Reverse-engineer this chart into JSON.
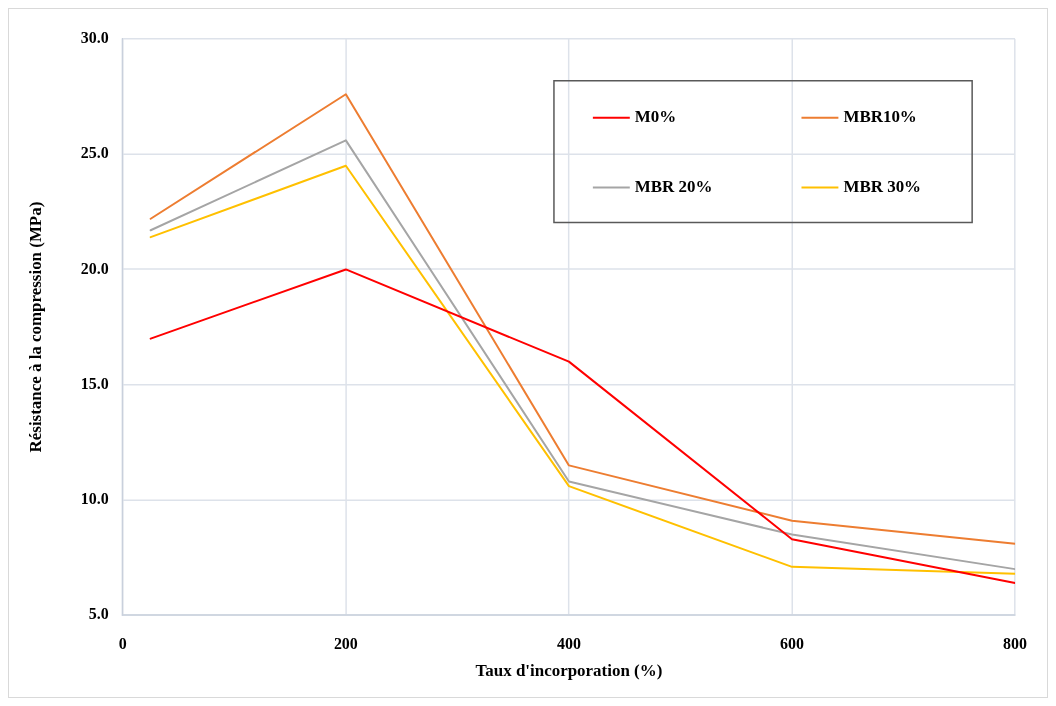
{
  "chart_data": {
    "type": "line",
    "xlabel": "Taux d'incorporation (%)",
    "ylabel": "Résistance à la compression (MPa)",
    "x": [
      25,
      200,
      400,
      600,
      800
    ],
    "series": [
      {
        "name": "M0%",
        "color": "#ff0000",
        "values": [
          17.0,
          20.0,
          16.0,
          8.3,
          6.4
        ]
      },
      {
        "name": "MBR10%",
        "color": "#ed7d31",
        "values": [
          22.2,
          27.6,
          11.5,
          9.1,
          8.1
        ]
      },
      {
        "name": "MBR 20%",
        "color": "#a5a5a5",
        "values": [
          21.7,
          25.6,
          10.8,
          8.5,
          7.0
        ]
      },
      {
        "name": "MBR 30%",
        "color": "#ffc000",
        "values": [
          21.4,
          24.5,
          10.6,
          7.1,
          6.8
        ]
      }
    ],
    "xlim": [
      0,
      800
    ],
    "xticks": [
      0,
      200,
      400,
      600,
      800
    ],
    "ylim": [
      5,
      30
    ],
    "yticks": [
      {
        "value": 5,
        "label": "5.0"
      },
      {
        "value": 10,
        "label": "10.0"
      },
      {
        "value": 15,
        "label": "15.0"
      },
      {
        "value": 20,
        "label": "20.0"
      },
      {
        "value": 25,
        "label": "25.0"
      },
      {
        "value": 30,
        "label": "30.0"
      }
    ],
    "grid": true,
    "legend": "top right",
    "marker": "none",
    "line_style": "solid"
  }
}
